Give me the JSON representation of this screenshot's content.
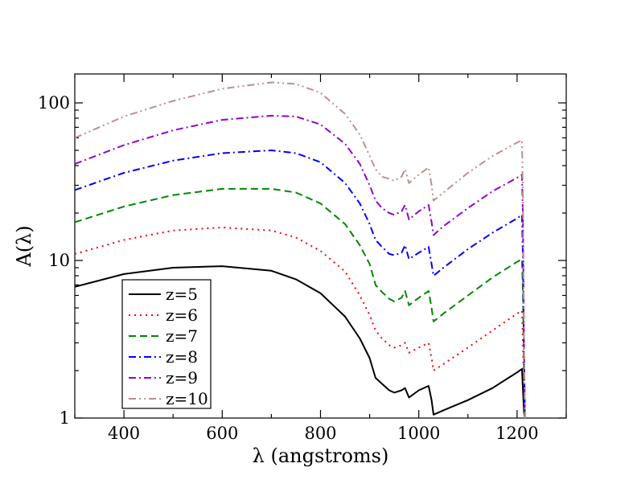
{
  "chart_data": {
    "type": "line",
    "title": "",
    "xlabel": "λ (angstroms)",
    "ylabel": "A(λ)",
    "xlim": [
      300,
      1300
    ],
    "ylim": [
      1,
      150
    ],
    "yscale": "log",
    "x_ticks": [
      400,
      600,
      800,
      1000,
      1200
    ],
    "x_tick_labels": [
      "400",
      "600",
      "800",
      "1000",
      "1200"
    ],
    "y_ticks": [
      1,
      10,
      100
    ],
    "y_tick_labels": [
      "1",
      "10",
      "100"
    ],
    "grid": false,
    "legend_position": "bottom-left",
    "series": [
      {
        "name": "z=5",
        "color": "#000000",
        "dash": "solid",
        "x": [
          300,
          400,
          500,
          600,
          700,
          750,
          800,
          850,
          880,
          900,
          912,
          925,
          940,
          950,
          965,
          972,
          980,
          1000,
          1020,
          1026,
          1030,
          1050,
          1100,
          1150,
          1200,
          1210,
          1212,
          1214,
          1216
        ],
        "y": [
          6.8,
          8.2,
          9.0,
          9.2,
          8.6,
          7.6,
          6.2,
          4.4,
          3.2,
          2.4,
          1.8,
          1.65,
          1.5,
          1.45,
          1.5,
          1.55,
          1.35,
          1.5,
          1.6,
          1.3,
          1.05,
          1.12,
          1.3,
          1.55,
          1.95,
          2.05,
          1.5,
          1.1,
          1.0
        ]
      },
      {
        "name": "z=6",
        "color": "#ff0000",
        "dash": "dot",
        "x": [
          300,
          400,
          500,
          600,
          700,
          750,
          800,
          850,
          880,
          900,
          912,
          925,
          940,
          950,
          965,
          972,
          980,
          1000,
          1020,
          1026,
          1030,
          1050,
          1100,
          1150,
          1200,
          1210,
          1212,
          1214,
          1216
        ],
        "y": [
          11,
          13.5,
          15.5,
          16.2,
          15.5,
          14,
          11.5,
          8.5,
          6,
          4.5,
          3.6,
          3.2,
          2.9,
          2.8,
          2.9,
          3.0,
          2.6,
          2.8,
          3.0,
          2.4,
          2.0,
          2.2,
          2.8,
          3.6,
          4.6,
          4.8,
          3.0,
          1.5,
          1.0
        ]
      },
      {
        "name": "z=7",
        "color": "#008800",
        "dash": "dash",
        "x": [
          300,
          400,
          500,
          600,
          700,
          750,
          800,
          850,
          880,
          900,
          912,
          925,
          940,
          950,
          965,
          972,
          980,
          1000,
          1020,
          1026,
          1030,
          1050,
          1100,
          1150,
          1200,
          1210,
          1212,
          1214,
          1216
        ],
        "y": [
          17.5,
          22,
          26,
          28.5,
          28.5,
          27,
          23,
          17,
          12.5,
          9.5,
          7,
          6.3,
          5.7,
          5.5,
          5.8,
          6.4,
          5.2,
          5.8,
          6.4,
          5.0,
          4.1,
          4.6,
          6.0,
          7.8,
          9.8,
          10.2,
          6.0,
          2.0,
          1.0
        ]
      },
      {
        "name": "z=8",
        "color": "#0000ff",
        "dash": "dashdot",
        "x": [
          300,
          400,
          500,
          600,
          700,
          750,
          800,
          850,
          880,
          900,
          912,
          925,
          940,
          950,
          965,
          972,
          980,
          1000,
          1020,
          1026,
          1030,
          1050,
          1100,
          1150,
          1200,
          1210,
          1212,
          1214,
          1216
        ],
        "y": [
          28,
          36,
          43,
          48,
          50,
          48,
          42,
          31,
          23,
          17,
          13.5,
          12.2,
          11,
          10.8,
          11.2,
          12.5,
          10.2,
          11.2,
          12.2,
          9.5,
          8.0,
          9.0,
          11.8,
          15.0,
          18.5,
          19.5,
          10.0,
          2.5,
          1.0
        ]
      },
      {
        "name": "z=9",
        "color": "#9400d3",
        "dash": "dashdot",
        "x": [
          300,
          400,
          500,
          600,
          700,
          750,
          800,
          850,
          880,
          900,
          912,
          925,
          940,
          950,
          965,
          972,
          980,
          1000,
          1020,
          1026,
          1030,
          1050,
          1100,
          1150,
          1200,
          1210,
          1212,
          1214,
          1216
        ],
        "y": [
          41,
          54,
          67,
          78,
          83,
          82,
          73,
          55,
          41,
          30,
          24,
          21.5,
          20,
          19.5,
          20.5,
          22.5,
          18.2,
          20.5,
          22.5,
          17.5,
          14.5,
          16.5,
          21.5,
          27.5,
          33.5,
          35,
          18,
          3.0,
          1.0
        ]
      },
      {
        "name": "z=10",
        "color": "#bc8f8f",
        "dash": "dashdotdot",
        "x": [
          300,
          400,
          500,
          600,
          700,
          750,
          800,
          850,
          880,
          900,
          912,
          925,
          940,
          950,
          965,
          972,
          980,
          1000,
          1020,
          1026,
          1030,
          1050,
          1100,
          1150,
          1200,
          1210,
          1212,
          1214,
          1216
        ],
        "y": [
          60,
          82,
          103,
          123,
          135,
          132,
          116,
          85,
          63,
          46,
          38,
          34,
          33,
          32,
          34,
          38,
          31,
          35,
          39,
          30,
          24,
          27,
          36,
          46,
          56,
          58,
          25,
          3.5,
          1.0
        ]
      }
    ]
  }
}
